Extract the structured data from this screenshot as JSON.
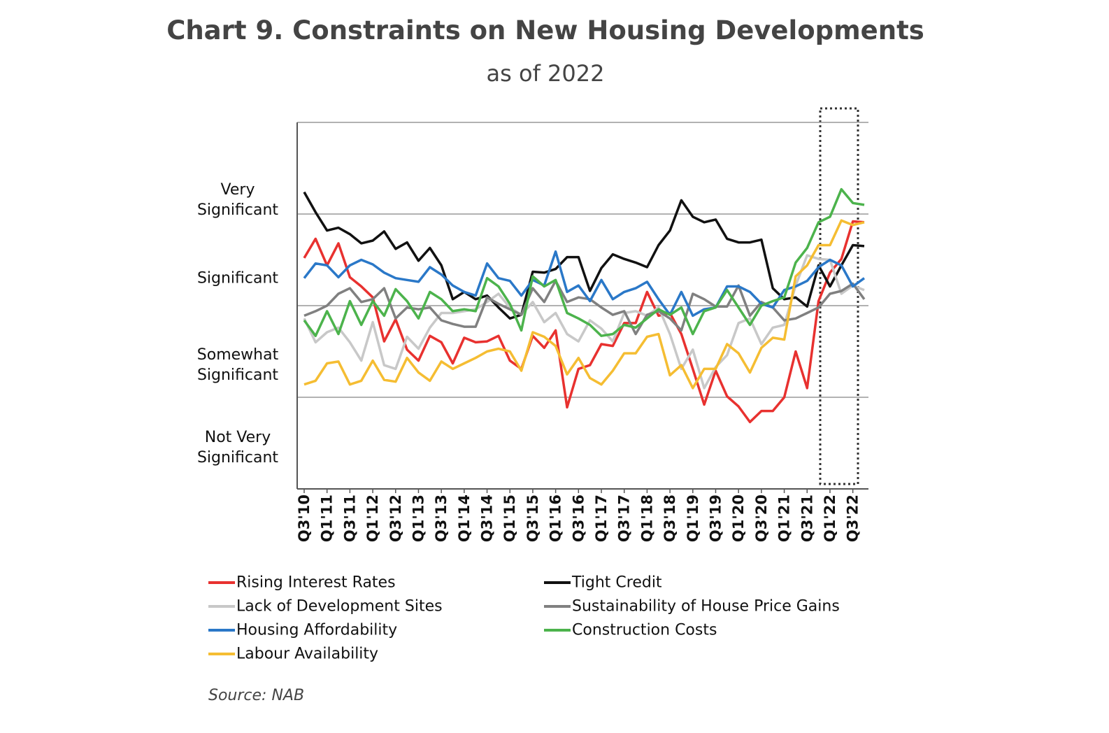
{
  "chart_data": {
    "type": "line",
    "title": "Chart 9. Constraints on New Housing Developments",
    "subtitle": "as of 2022",
    "source": "Source: NAB",
    "categories": [
      "Q3'10",
      null,
      "Q1'11",
      null,
      "Q3'11",
      null,
      "Q1'12",
      null,
      "Q3'12",
      null,
      "Q1'13",
      null,
      "Q3'13",
      null,
      "Q1'14",
      null,
      "Q3'14",
      null,
      "Q1'15",
      null,
      "Q3'15",
      null,
      "Q1'16",
      null,
      "Q3'16",
      null,
      "Q1'17",
      null,
      "Q3'17",
      null,
      "Q1'18",
      null,
      "Q3'18",
      null,
      "Q1'19",
      null,
      "Q3'19",
      null,
      "Q1'20",
      null,
      "Q3'20",
      null,
      "Q1'21",
      null,
      "Q3'21",
      null,
      "Q1'22",
      null,
      "Q3'22",
      null
    ],
    "ylim": [
      0,
      4
    ],
    "yticks": [
      {
        "value": 0.45,
        "label": "Not Very Significant"
      },
      {
        "value": 1.35,
        "label": "Somewhat Significant"
      },
      {
        "value": 2.3,
        "label": "Significant"
      },
      {
        "value": 3.15,
        "label": "Very Significant"
      }
    ],
    "ygrid": [
      1,
      2,
      3,
      4
    ],
    "series": [
      {
        "name": "Rising Interest Rates",
        "color": "#e8312f",
        "values": [
          2.52,
          2.73,
          2.44,
          2.68,
          2.31,
          2.21,
          2.09,
          1.61,
          1.85,
          1.52,
          1.4,
          1.67,
          1.6,
          1.37,
          1.65,
          1.6,
          1.61,
          1.67,
          1.4,
          1.31,
          1.67,
          1.54,
          1.73,
          0.89,
          1.31,
          1.35,
          1.58,
          1.56,
          1.81,
          1.81,
          2.15,
          1.89,
          1.92,
          1.69,
          1.31,
          0.92,
          1.29,
          1.01,
          0.9,
          0.73,
          0.85,
          0.85,
          1.0,
          1.5,
          1.1,
          2.05,
          2.36,
          2.51,
          2.92,
          2.91
        ]
      },
      {
        "name": "Tight Credit",
        "color": "#111111",
        "values": [
          3.24,
          3.02,
          2.82,
          2.85,
          2.78,
          2.68,
          2.71,
          2.81,
          2.62,
          2.69,
          2.49,
          2.63,
          2.44,
          2.07,
          2.15,
          2.07,
          2.11,
          1.98,
          1.86,
          1.9,
          2.37,
          2.36,
          2.4,
          2.53,
          2.53,
          2.16,
          2.41,
          2.56,
          2.51,
          2.47,
          2.42,
          2.66,
          2.82,
          3.15,
          2.97,
          2.91,
          2.94,
          2.73,
          2.69,
          2.69,
          2.72,
          2.19,
          2.07,
          2.09,
          1.99,
          2.44,
          2.21,
          2.44,
          2.66,
          2.65
        ]
      },
      {
        "name": "Lack of Development Sites",
        "color": "#c8c8c8",
        "values": [
          1.86,
          1.6,
          1.71,
          1.76,
          1.6,
          1.4,
          1.82,
          1.35,
          1.31,
          1.66,
          1.53,
          1.76,
          1.92,
          1.92,
          1.94,
          1.96,
          2.04,
          2.13,
          1.98,
          1.9,
          2.04,
          1.82,
          1.92,
          1.69,
          1.61,
          1.84,
          1.75,
          1.61,
          1.92,
          1.94,
          1.89,
          1.98,
          1.69,
          1.31,
          1.52,
          1.1,
          1.33,
          1.46,
          1.81,
          1.86,
          1.58,
          1.76,
          1.79,
          2.22,
          2.55,
          2.51,
          2.5,
          2.13,
          2.22,
          2.17
        ]
      },
      {
        "name": "Sustainability of House Price Gains",
        "color": "#808080",
        "values": [
          1.89,
          1.94,
          2.0,
          2.13,
          2.19,
          2.04,
          2.07,
          2.19,
          1.86,
          1.98,
          1.96,
          1.98,
          1.84,
          1.8,
          1.77,
          1.77,
          2.09,
          2.02,
          1.96,
          1.9,
          2.19,
          2.04,
          2.27,
          2.04,
          2.09,
          2.07,
          1.98,
          1.9,
          1.94,
          1.69,
          1.9,
          1.94,
          1.86,
          1.73,
          2.13,
          2.07,
          1.99,
          1.99,
          2.22,
          1.89,
          2.04,
          1.98,
          1.84,
          1.86,
          1.92,
          1.98,
          2.13,
          2.16,
          2.24,
          2.07
        ]
      },
      {
        "name": "Housing Affordability",
        "color": "#2a78c8",
        "values": [
          2.3,
          2.46,
          2.44,
          2.31,
          2.44,
          2.5,
          2.45,
          2.36,
          2.3,
          2.28,
          2.26,
          2.42,
          2.34,
          2.22,
          2.15,
          2.11,
          2.46,
          2.3,
          2.27,
          2.11,
          2.28,
          2.22,
          2.59,
          2.15,
          2.22,
          2.05,
          2.28,
          2.07,
          2.15,
          2.19,
          2.26,
          2.07,
          1.9,
          2.15,
          1.89,
          1.96,
          1.98,
          2.21,
          2.21,
          2.15,
          2.02,
          1.98,
          2.17,
          2.21,
          2.27,
          2.42,
          2.5,
          2.44,
          2.21,
          2.3
        ]
      },
      {
        "name": "Construction Costs",
        "color": "#4cb34c",
        "values": [
          1.84,
          1.67,
          1.94,
          1.69,
          2.05,
          1.79,
          2.05,
          1.89,
          2.18,
          2.05,
          1.86,
          2.15,
          2.07,
          1.94,
          1.96,
          1.94,
          2.3,
          2.21,
          2.02,
          1.73,
          2.32,
          2.21,
          2.28,
          1.92,
          1.86,
          1.79,
          1.67,
          1.69,
          1.79,
          1.76,
          1.86,
          1.96,
          1.9,
          1.98,
          1.69,
          1.94,
          1.98,
          2.17,
          1.98,
          1.79,
          2.0,
          2.05,
          2.09,
          2.47,
          2.63,
          2.91,
          2.97,
          3.27,
          3.12,
          3.1
        ]
      },
      {
        "name": "Labour Availability",
        "color": "#f5bd32",
        "values": [
          1.14,
          1.18,
          1.37,
          1.39,
          1.14,
          1.18,
          1.4,
          1.19,
          1.17,
          1.43,
          1.27,
          1.18,
          1.39,
          1.31,
          1.37,
          1.43,
          1.5,
          1.53,
          1.5,
          1.29,
          1.71,
          1.66,
          1.56,
          1.25,
          1.43,
          1.21,
          1.14,
          1.29,
          1.48,
          1.48,
          1.66,
          1.69,
          1.24,
          1.35,
          1.1,
          1.31,
          1.31,
          1.58,
          1.48,
          1.27,
          1.54,
          1.65,
          1.63,
          2.32,
          2.44,
          2.66,
          2.66,
          2.93,
          2.88,
          2.91
        ]
      }
    ]
  }
}
